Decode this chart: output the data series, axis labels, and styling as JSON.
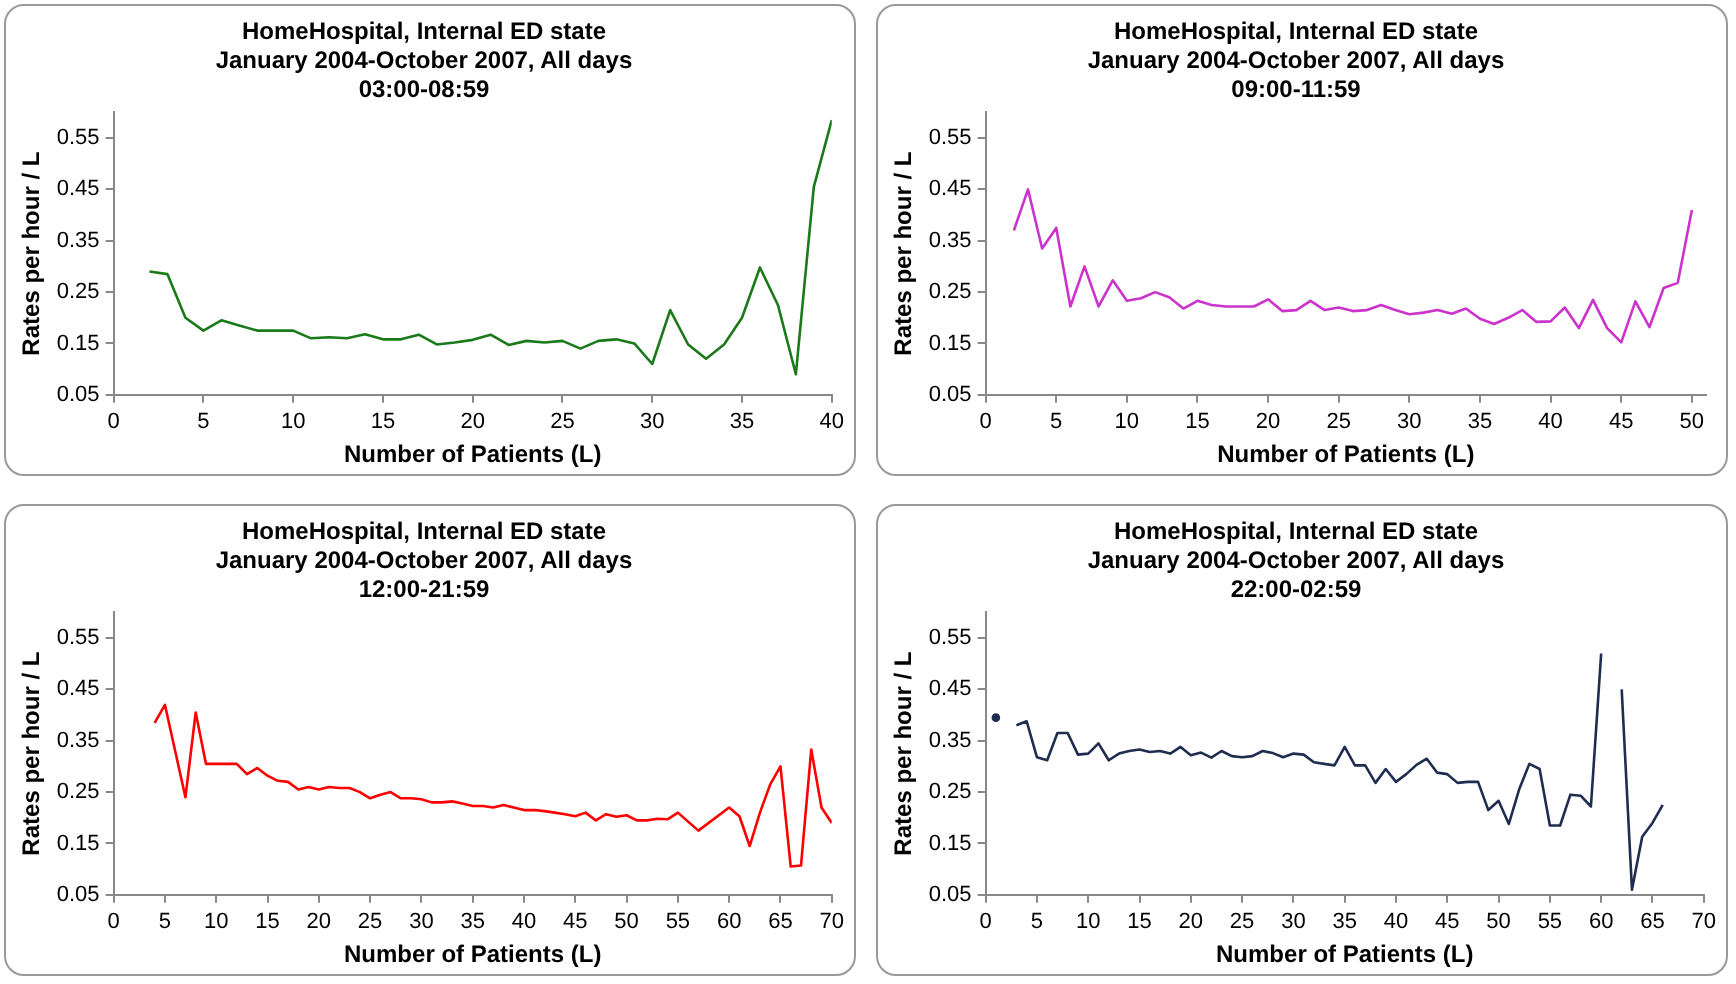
{
  "chart_data": [
    {
      "type": "line",
      "title": "HomeHospital, Internal ED state",
      "subtitle": "January 2004-October 2007, All days\n03:00-08:59",
      "xlabel": "Number of Patients (L)",
      "ylabel": "Rates per hour / L",
      "grid": false,
      "legend": false,
      "xlim": [
        0,
        40
      ],
      "xticks": [
        0,
        5,
        10,
        15,
        20,
        25,
        30,
        35,
        40
      ],
      "ylim": [
        0.05,
        0.6
      ],
      "yticks": [
        0.05,
        0.15,
        0.25,
        0.35,
        0.45,
        0.55
      ],
      "series": [
        {
          "color": "#1a7a1a",
          "x": [
            2,
            3,
            4,
            5,
            6,
            7,
            8,
            9,
            10,
            11,
            12,
            13,
            14,
            15,
            16,
            17,
            18,
            19,
            20,
            21,
            22,
            23,
            24,
            25,
            26,
            27,
            28,
            29,
            30,
            31,
            32,
            33,
            34,
            35,
            36,
            37,
            38,
            39,
            40
          ],
          "values": [
            0.29,
            0.285,
            0.2,
            0.175,
            0.195,
            0.185,
            0.175,
            0.175,
            0.175,
            0.16,
            0.162,
            0.16,
            0.168,
            0.158,
            0.158,
            0.167,
            0.148,
            0.152,
            0.157,
            0.167,
            0.147,
            0.155,
            0.152,
            0.155,
            0.14,
            0.155,
            0.158,
            0.15,
            0.11,
            0.215,
            0.148,
            0.12,
            0.148,
            0.2,
            0.298,
            0.225,
            0.09,
            0.455,
            0.585
          ]
        }
      ]
    },
    {
      "type": "line",
      "title": "HomeHospital, Internal ED state",
      "subtitle": "January 2004-October 2007, All days\n09:00-11:59",
      "xlabel": "Number of Patients (L)",
      "ylabel": "Rates per hour / L",
      "grid": false,
      "legend": false,
      "xlim": [
        0,
        51
      ],
      "xticks": [
        0,
        5,
        10,
        15,
        20,
        25,
        30,
        35,
        40,
        45,
        50
      ],
      "ylim": [
        0.05,
        0.6
      ],
      "yticks": [
        0.05,
        0.15,
        0.25,
        0.35,
        0.45,
        0.55
      ],
      "series": [
        {
          "color": "#cc33cc",
          "x": [
            2,
            3,
            4,
            5,
            6,
            7,
            8,
            9,
            10,
            11,
            12,
            13,
            14,
            15,
            16,
            17,
            18,
            19,
            20,
            21,
            22,
            23,
            24,
            25,
            26,
            27,
            28,
            29,
            30,
            31,
            32,
            33,
            34,
            35,
            36,
            37,
            38,
            39,
            40,
            41,
            42,
            43,
            44,
            45,
            46,
            47,
            48,
            49,
            50
          ],
          "values": [
            0.37,
            0.45,
            0.335,
            0.375,
            0.222,
            0.3,
            0.222,
            0.273,
            0.233,
            0.238,
            0.25,
            0.24,
            0.218,
            0.233,
            0.225,
            0.222,
            0.222,
            0.222,
            0.236,
            0.213,
            0.215,
            0.233,
            0.215,
            0.22,
            0.213,
            0.215,
            0.225,
            0.215,
            0.207,
            0.21,
            0.215,
            0.208,
            0.218,
            0.198,
            0.188,
            0.2,
            0.215,
            0.192,
            0.193,
            0.22,
            0.18,
            0.235,
            0.18,
            0.152,
            0.232,
            0.182,
            0.258,
            0.268,
            0.41
          ]
        }
      ]
    },
    {
      "type": "line",
      "title": "HomeHospital, Internal ED state",
      "subtitle": "January 2004-October 2007, All days\n12:00-21:59",
      "xlabel": "Number of Patients (L)",
      "ylabel": "Rates per hour / L",
      "grid": false,
      "legend": false,
      "xlim": [
        0,
        70
      ],
      "xticks": [
        0,
        5,
        10,
        15,
        20,
        25,
        30,
        35,
        40,
        45,
        50,
        55,
        60,
        65,
        70
      ],
      "ylim": [
        0.05,
        0.6
      ],
      "yticks": [
        0.05,
        0.15,
        0.25,
        0.35,
        0.45,
        0.55
      ],
      "series": [
        {
          "color": "#ff0000",
          "x": [
            4,
            5,
            6,
            7,
            8,
            9,
            10,
            11,
            12,
            13,
            14,
            15,
            16,
            17,
            18,
            19,
            20,
            21,
            22,
            23,
            24,
            25,
            26,
            27,
            28,
            29,
            30,
            31,
            32,
            33,
            34,
            35,
            36,
            37,
            38,
            39,
            40,
            41,
            42,
            43,
            44,
            45,
            46,
            47,
            48,
            49,
            50,
            51,
            52,
            53,
            54,
            55,
            57,
            60,
            61,
            62,
            63,
            64,
            65,
            66,
            67,
            68,
            69,
            70
          ],
          "values": [
            0.385,
            0.42,
            0.33,
            0.24,
            0.405,
            0.305,
            0.305,
            0.305,
            0.305,
            0.285,
            0.297,
            0.282,
            0.272,
            0.27,
            0.255,
            0.26,
            0.255,
            0.26,
            0.258,
            0.258,
            0.25,
            0.238,
            0.245,
            0.25,
            0.238,
            0.238,
            0.236,
            0.23,
            0.23,
            0.232,
            0.228,
            0.223,
            0.223,
            0.22,
            0.225,
            0.22,
            0.215,
            0.215,
            0.213,
            0.21,
            0.207,
            0.203,
            0.21,
            0.195,
            0.207,
            0.202,
            0.205,
            0.195,
            0.195,
            0.198,
            0.197,
            0.21,
            0.175,
            0.22,
            0.203,
            0.145,
            0.21,
            0.265,
            0.3,
            0.105,
            0.107,
            0.333,
            0.22,
            0.19
          ]
        }
      ]
    },
    {
      "type": "line",
      "title": "HomeHospital, Internal ED state",
      "subtitle": "January 2004-October 2007, All days\n22:00-02:59",
      "xlabel": "Number of Patients (L)",
      "ylabel": "Rates per hour / L",
      "grid": false,
      "legend": false,
      "xlim": [
        0,
        70
      ],
      "xticks": [
        0,
        5,
        10,
        15,
        20,
        25,
        30,
        35,
        40,
        45,
        50,
        55,
        60,
        65,
        70
      ],
      "ylim": [
        0.05,
        0.6
      ],
      "yticks": [
        0.05,
        0.15,
        0.25,
        0.35,
        0.45,
        0.55
      ],
      "series": [
        {
          "color": "#1f2d4f",
          "x": [
            1,
            2,
            3,
            4,
            5,
            6,
            7,
            8,
            9,
            10,
            11,
            12,
            13,
            14,
            15,
            16,
            17,
            18,
            19,
            20,
            21,
            22,
            23,
            24,
            25,
            26,
            27,
            28,
            29,
            30,
            31,
            32,
            33,
            34,
            35,
            36,
            37,
            38,
            39,
            40,
            41,
            42,
            43,
            44,
            45,
            46,
            47,
            48,
            49,
            50,
            51,
            52,
            53,
            54,
            55,
            56,
            57,
            58,
            59,
            60,
            61,
            62,
            63,
            64,
            65,
            66
          ],
          "values": [
            0.395,
            null,
            0.38,
            0.388,
            0.318,
            0.312,
            0.365,
            0.365,
            0.323,
            0.325,
            0.345,
            0.312,
            0.325,
            0.33,
            0.333,
            0.328,
            0.33,
            0.325,
            0.338,
            0.322,
            0.327,
            0.317,
            0.33,
            0.32,
            0.318,
            0.32,
            0.33,
            0.326,
            0.318,
            0.325,
            0.323,
            0.308,
            0.305,
            0.302,
            0.338,
            0.302,
            0.302,
            0.268,
            0.295,
            0.27,
            0.285,
            0.303,
            0.315,
            0.288,
            0.285,
            0.268,
            0.27,
            0.27,
            0.215,
            0.233,
            0.188,
            0.255,
            0.305,
            0.295,
            0.185,
            0.185,
            0.245,
            0.243,
            0.222,
            0.52,
            null,
            0.45,
            0.06,
            0.163,
            0.19,
            0.225
          ]
        }
      ]
    }
  ]
}
